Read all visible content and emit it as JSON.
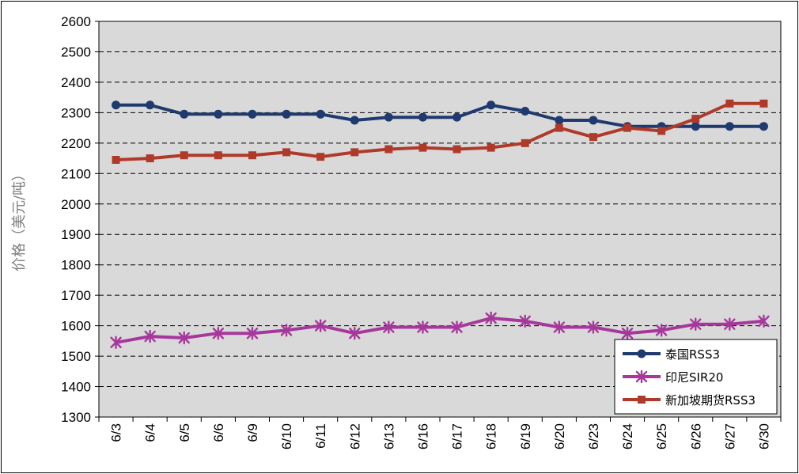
{
  "chart_data": {
    "type": "line",
    "ylabel": "价格（美元/吨）",
    "xlabel": "",
    "title": "",
    "ylim": [
      1300,
      2600
    ],
    "ytick_step": 100,
    "grid": "horizontal-dashed",
    "legend_position": "bottom-right",
    "plot_background": "#d9d9d9",
    "categories": [
      "6/3",
      "6/4",
      "6/5",
      "6/6",
      "6/9",
      "6/10",
      "6/11",
      "6/12",
      "6/13",
      "6/16",
      "6/17",
      "6/18",
      "6/19",
      "6/20",
      "6/23",
      "6/24",
      "6/25",
      "6/26",
      "6/27",
      "6/30"
    ],
    "series": [
      {
        "name": "泰国RSS3",
        "color": "#1f3a6e",
        "marker": "circle",
        "values": [
          2325,
          2325,
          2295,
          2295,
          2295,
          2295,
          2295,
          2275,
          2285,
          2285,
          2285,
          2325,
          2305,
          2275,
          2275,
          2255,
          2255,
          2255,
          2255,
          2255
        ]
      },
      {
        "name": "印尼SIR20",
        "color": "#a6389b",
        "marker": "asterisk",
        "values": [
          1545,
          1565,
          1560,
          1575,
          1575,
          1585,
          1600,
          1575,
          1595,
          1595,
          1595,
          1625,
          1615,
          1595,
          1595,
          1575,
          1585,
          1605,
          1605,
          1615
        ]
      },
      {
        "name": "新加坡期货RSS3",
        "color": "#b03a2a",
        "marker": "square",
        "values": [
          2145,
          2150,
          2160,
          2160,
          2160,
          2170,
          2155,
          2170,
          2180,
          2185,
          2180,
          2185,
          2200,
          2250,
          2220,
          2250,
          2240,
          2280,
          2330,
          2330
        ]
      }
    ]
  }
}
